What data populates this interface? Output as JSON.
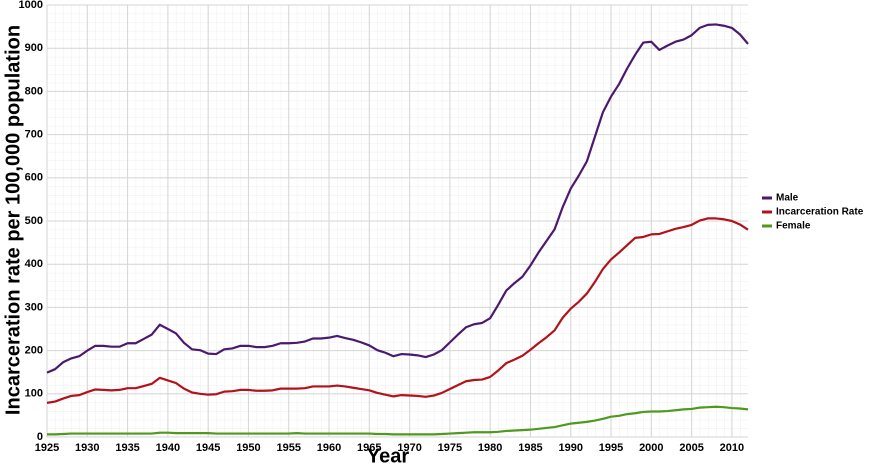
{
  "chart_data": {
    "type": "line",
    "xlabel": "Year",
    "ylabel": "Incarceration rate per 100,000 population",
    "x": [
      1925,
      1926,
      1927,
      1928,
      1929,
      1930,
      1931,
      1932,
      1933,
      1934,
      1935,
      1936,
      1937,
      1938,
      1939,
      1940,
      1941,
      1942,
      1943,
      1944,
      1945,
      1946,
      1947,
      1948,
      1949,
      1950,
      1951,
      1952,
      1953,
      1954,
      1955,
      1956,
      1957,
      1958,
      1959,
      1960,
      1961,
      1962,
      1963,
      1964,
      1965,
      1966,
      1967,
      1968,
      1969,
      1970,
      1971,
      1972,
      1973,
      1974,
      1975,
      1976,
      1977,
      1978,
      1979,
      1980,
      1981,
      1982,
      1983,
      1984,
      1985,
      1986,
      1987,
      1988,
      1989,
      1990,
      1991,
      1992,
      1993,
      1994,
      1995,
      1996,
      1997,
      1998,
      1999,
      2000,
      2001,
      2002,
      2003,
      2004,
      2005,
      2006,
      2007,
      2008,
      2009,
      2010,
      2011,
      2012
    ],
    "series": [
      {
        "name": "Male",
        "color": "#4b1a6e",
        "values": [
          149,
          157,
          173,
          182,
          187,
          200,
          211,
          211,
          209,
          209,
          217,
          217,
          227,
          237,
          260,
          250,
          240,
          218,
          203,
          201,
          193,
          192,
          203,
          205,
          211,
          211,
          208,
          208,
          211,
          217,
          217,
          218,
          221,
          228,
          228,
          230,
          234,
          229,
          225,
          219,
          212,
          201,
          195,
          187,
          192,
          191,
          189,
          185,
          191,
          201,
          219,
          237,
          254,
          261,
          264,
          275,
          306,
          339,
          356,
          371,
          397,
          427,
          454,
          481,
          532,
          575,
          605,
          638,
          695,
          752,
          788,
          817,
          853,
          885,
          913,
          915,
          896,
          906,
          915,
          920,
          930,
          947,
          954,
          955,
          952,
          947,
          932,
          910
        ]
      },
      {
        "name": "Incarceration Rate",
        "color": "#b3121a",
        "values": [
          79,
          82,
          89,
          95,
          97,
          104,
          110,
          109,
          108,
          109,
          113,
          113,
          118,
          123,
          137,
          131,
          125,
          112,
          103,
          100,
          98,
          99,
          105,
          106,
          109,
          109,
          107,
          107,
          108,
          112,
          112,
          112,
          113,
          117,
          117,
          117,
          119,
          117,
          114,
          111,
          108,
          102,
          98,
          94,
          97,
          96,
          95,
          93,
          96,
          102,
          111,
          120,
          129,
          132,
          133,
          139,
          154,
          171,
          179,
          188,
          202,
          217,
          231,
          247,
          276,
          297,
          313,
          332,
          359,
          389,
          411,
          427,
          444,
          461,
          463,
          469,
          470,
          476,
          482,
          486,
          491,
          501,
          506,
          506,
          504,
          500,
          492,
          480
        ]
      },
      {
        "name": "Female",
        "color": "#4d9a1e",
        "values": [
          6,
          6,
          7,
          8,
          8,
          8,
          8,
          8,
          8,
          8,
          8,
          8,
          8,
          8,
          10,
          10,
          9,
          9,
          9,
          9,
          9,
          8,
          8,
          8,
          8,
          8,
          8,
          8,
          8,
          8,
          8,
          9,
          8,
          8,
          8,
          8,
          8,
          8,
          8,
          8,
          8,
          7,
          7,
          6,
          6,
          6,
          6,
          6,
          6,
          7,
          8,
          9,
          10,
          11,
          11,
          11,
          12,
          14,
          15,
          16,
          17,
          19,
          21,
          23,
          27,
          31,
          33,
          35,
          38,
          42,
          47,
          49,
          53,
          55,
          58,
          59,
          59,
          60,
          62,
          64,
          65,
          68,
          69,
          70,
          69,
          67,
          66,
          64
        ]
      }
    ],
    "xlim": [
      1925,
      2012
    ],
    "ylim": [
      0,
      1000
    ],
    "xticks": [
      1925,
      1930,
      1935,
      1940,
      1945,
      1950,
      1955,
      1960,
      1965,
      1970,
      1975,
      1980,
      1985,
      1990,
      1995,
      2000,
      2005,
      2010
    ],
    "yticks": [
      0,
      100,
      200,
      300,
      400,
      500,
      600,
      700,
      800,
      900,
      1000
    ],
    "grid": true,
    "legend": "right"
  }
}
